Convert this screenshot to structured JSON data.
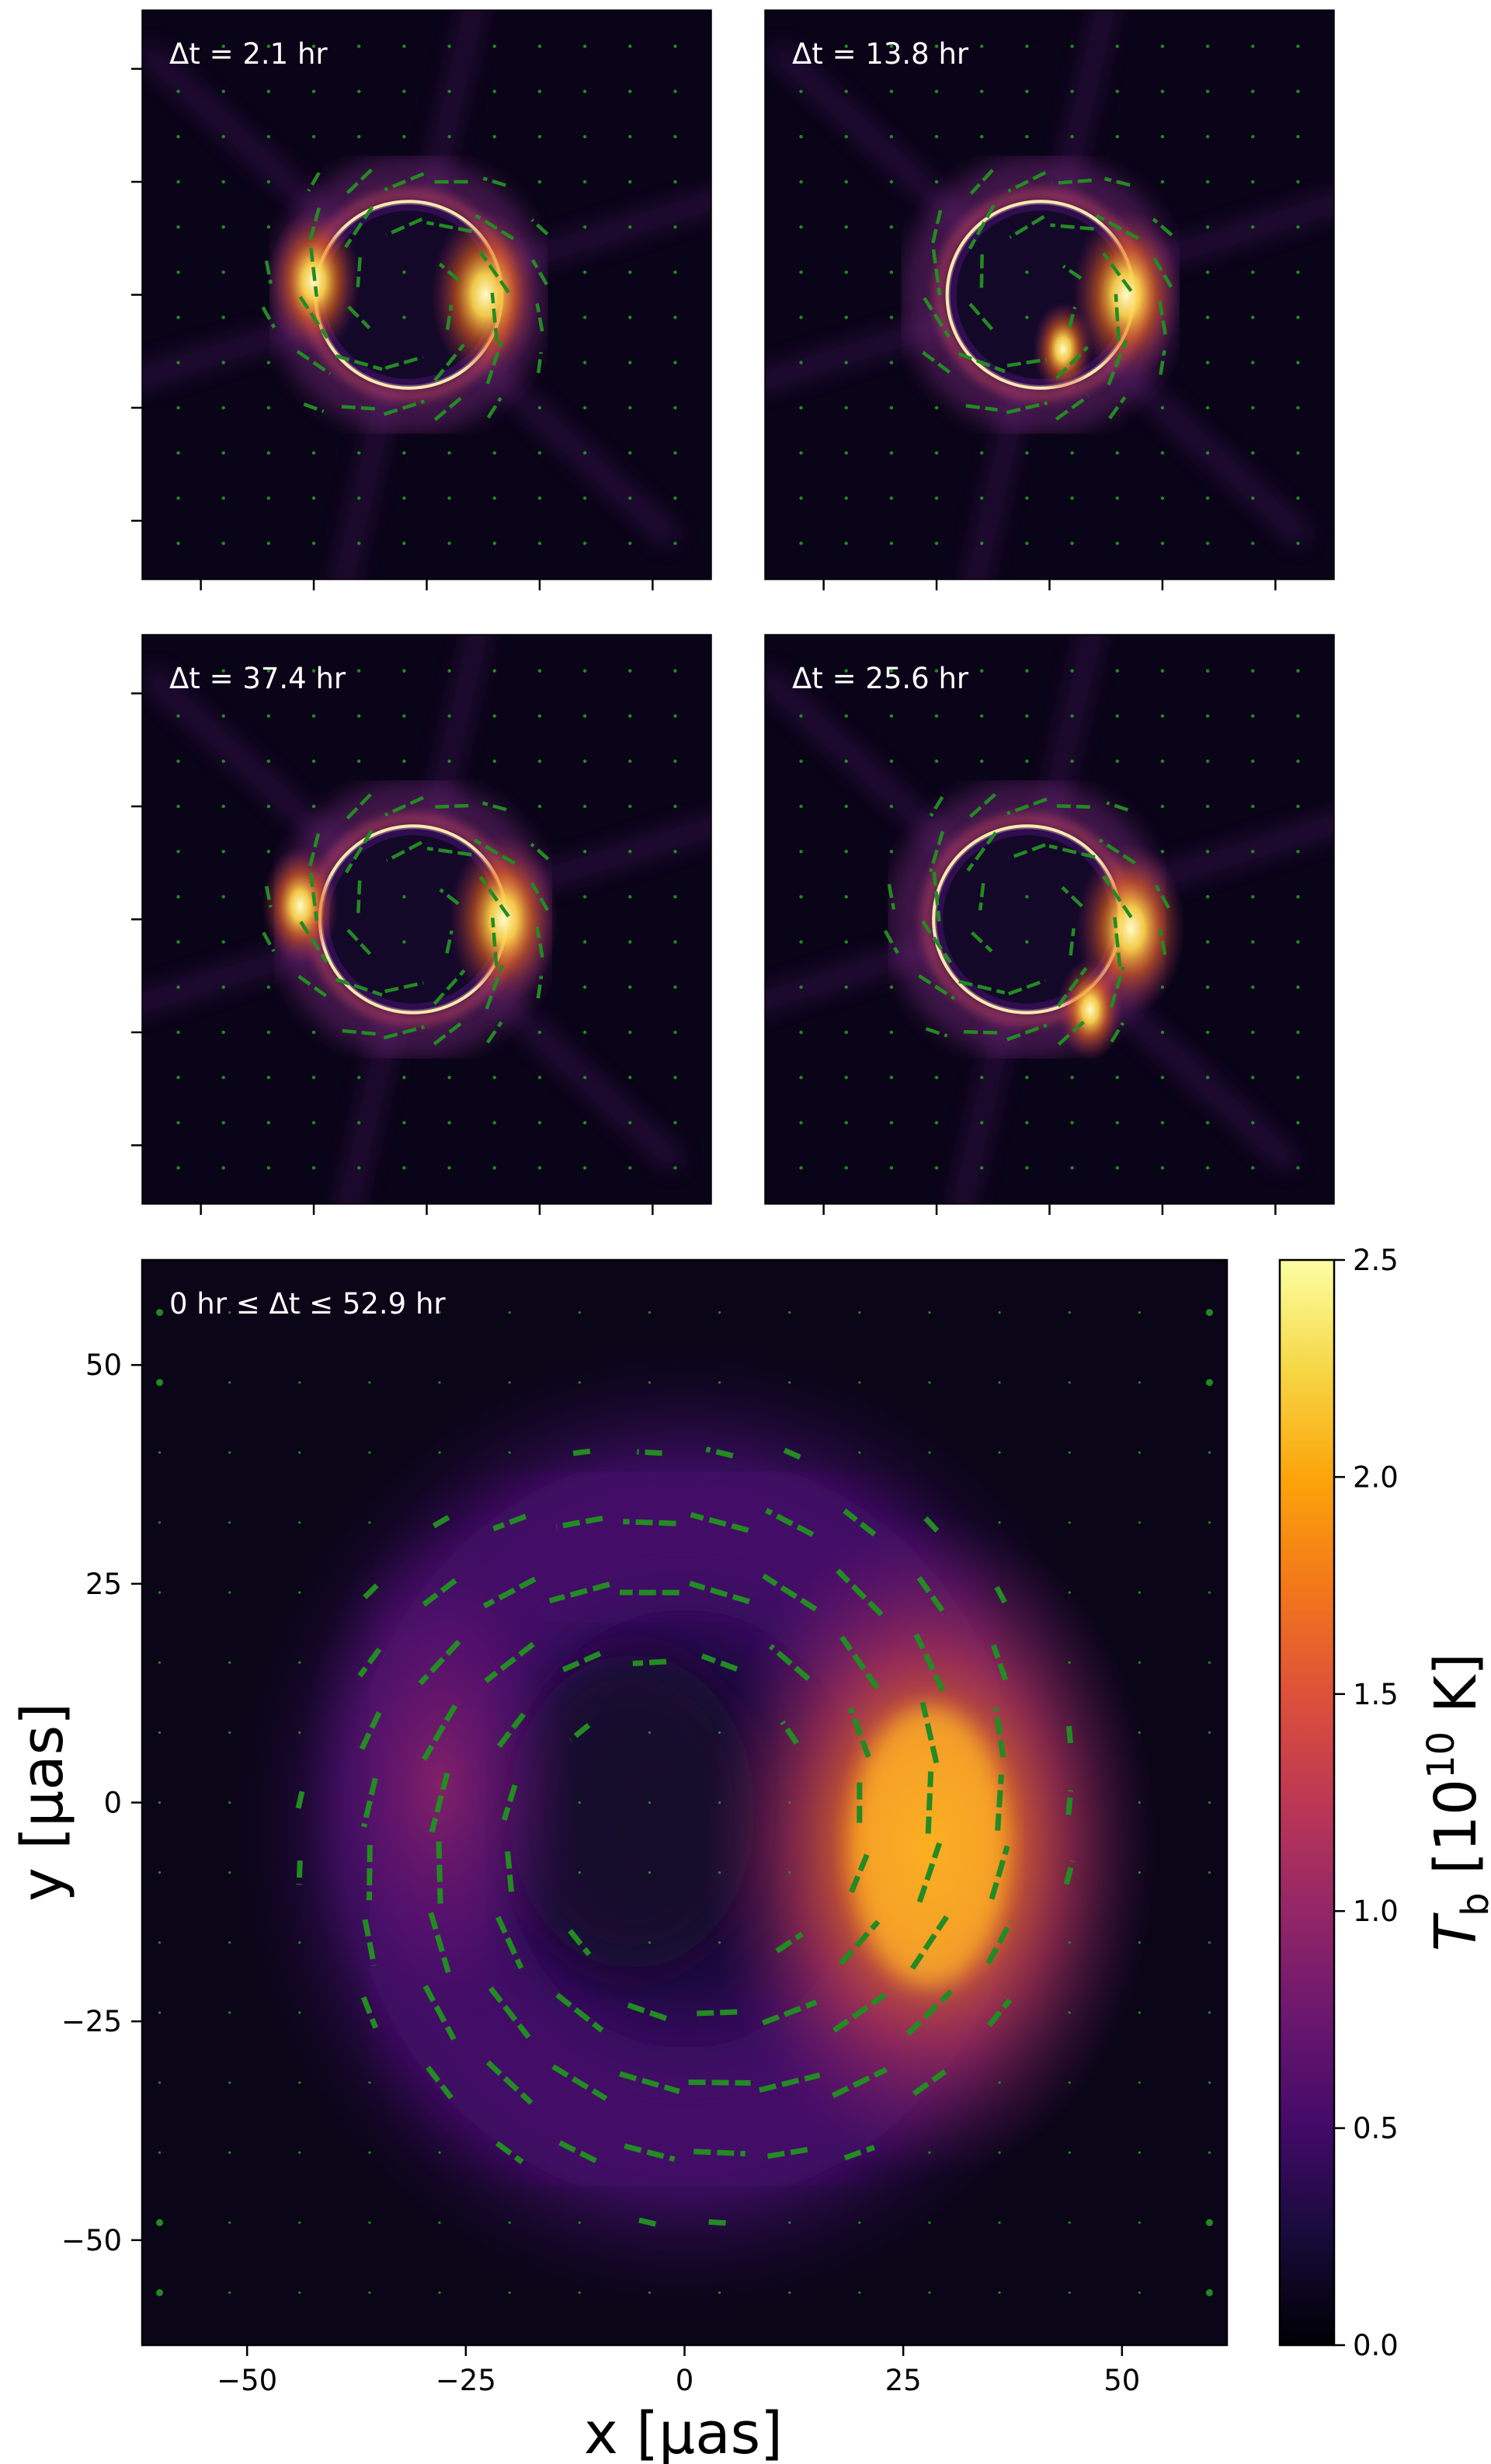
{
  "chart_data": {
    "type": "heatmap",
    "colormap": "inferno",
    "polarization_tick_color": "#228b22",
    "panels": [
      {
        "id": "snap_1",
        "label": "Δt = 2.1 hr",
        "delta_t_hr": 2.1,
        "ring_center_uas": [
          -4,
          0
        ],
        "ring_radius_uas": 20.5,
        "hotspots": [
          {
            "x_uas": 13,
            "y_uas": 0,
            "intensity": 1.0
          },
          {
            "x_uas": -25,
            "y_uas": 3,
            "intensity": 0.85
          }
        ]
      },
      {
        "id": "snap_2",
        "label": "Δt = 13.8 hr",
        "delta_t_hr": 13.8,
        "ring_center_uas": [
          -2,
          0
        ],
        "ring_radius_uas": 20.5,
        "hotspots": [
          {
            "x_uas": 17,
            "y_uas": 0,
            "intensity": 1.0
          },
          {
            "x_uas": 3,
            "y_uas": -12,
            "intensity": 0.55
          }
        ]
      },
      {
        "id": "snap_3",
        "label": "Δt = 37.4 hr",
        "delta_t_hr": 37.4,
        "ring_center_uas": [
          -3,
          0
        ],
        "ring_radius_uas": 20.5,
        "hotspots": [
          {
            "x_uas": 17,
            "y_uas": 0,
            "intensity": 1.0
          },
          {
            "x_uas": -28,
            "y_uas": 3,
            "intensity": 0.7
          }
        ]
      },
      {
        "id": "snap_4",
        "label": "Δt = 25.6 hr",
        "delta_t_hr": 25.6,
        "ring_center_uas": [
          -5,
          0
        ],
        "ring_radius_uas": 20.5,
        "hotspots": [
          {
            "x_uas": 18,
            "y_uas": -2,
            "intensity": 1.0
          },
          {
            "x_uas": 9,
            "y_uas": -20,
            "intensity": 0.6
          }
        ]
      }
    ],
    "average_panel": {
      "label": "0 hr ≤ Δt ≤ 52.9 hr",
      "xlabel": "x [μas]",
      "ylabel": "y [μas]",
      "xlim": [
        -62,
        62
      ],
      "ylim": [
        -62,
        62
      ],
      "xticks": [
        "−50",
        "−25",
        "0",
        "25",
        "50"
      ],
      "yticks": [
        "50",
        "25",
        "0",
        "−25",
        "−50"
      ],
      "xtick_values": [
        -50,
        -25,
        0,
        25,
        50
      ],
      "ytick_values": [
        50,
        25,
        0,
        -25,
        -50
      ],
      "ring_center_uas": [
        0,
        -3
      ],
      "ring_radius_uas": 30,
      "peak_uas": [
        28,
        -5
      ],
      "peak_Tb_1e10K": 2.3,
      "secondary_uas": [
        -28,
        2
      ],
      "secondary_Tb_1e10K": 0.9
    },
    "colorbar": {
      "label": "T_b [10^10 K]",
      "label_parts": {
        "symbol": "T",
        "subscript": "b",
        "open": " [10",
        "exponent": "10",
        "close": " K]"
      },
      "range": [
        0.0,
        2.5
      ],
      "ticks": [
        0.0,
        0.5,
        1.0,
        1.5,
        2.0,
        2.5
      ],
      "tick_labels": [
        "0.0",
        "0.5",
        "1.0",
        "1.5",
        "2.0",
        "2.5"
      ]
    }
  }
}
